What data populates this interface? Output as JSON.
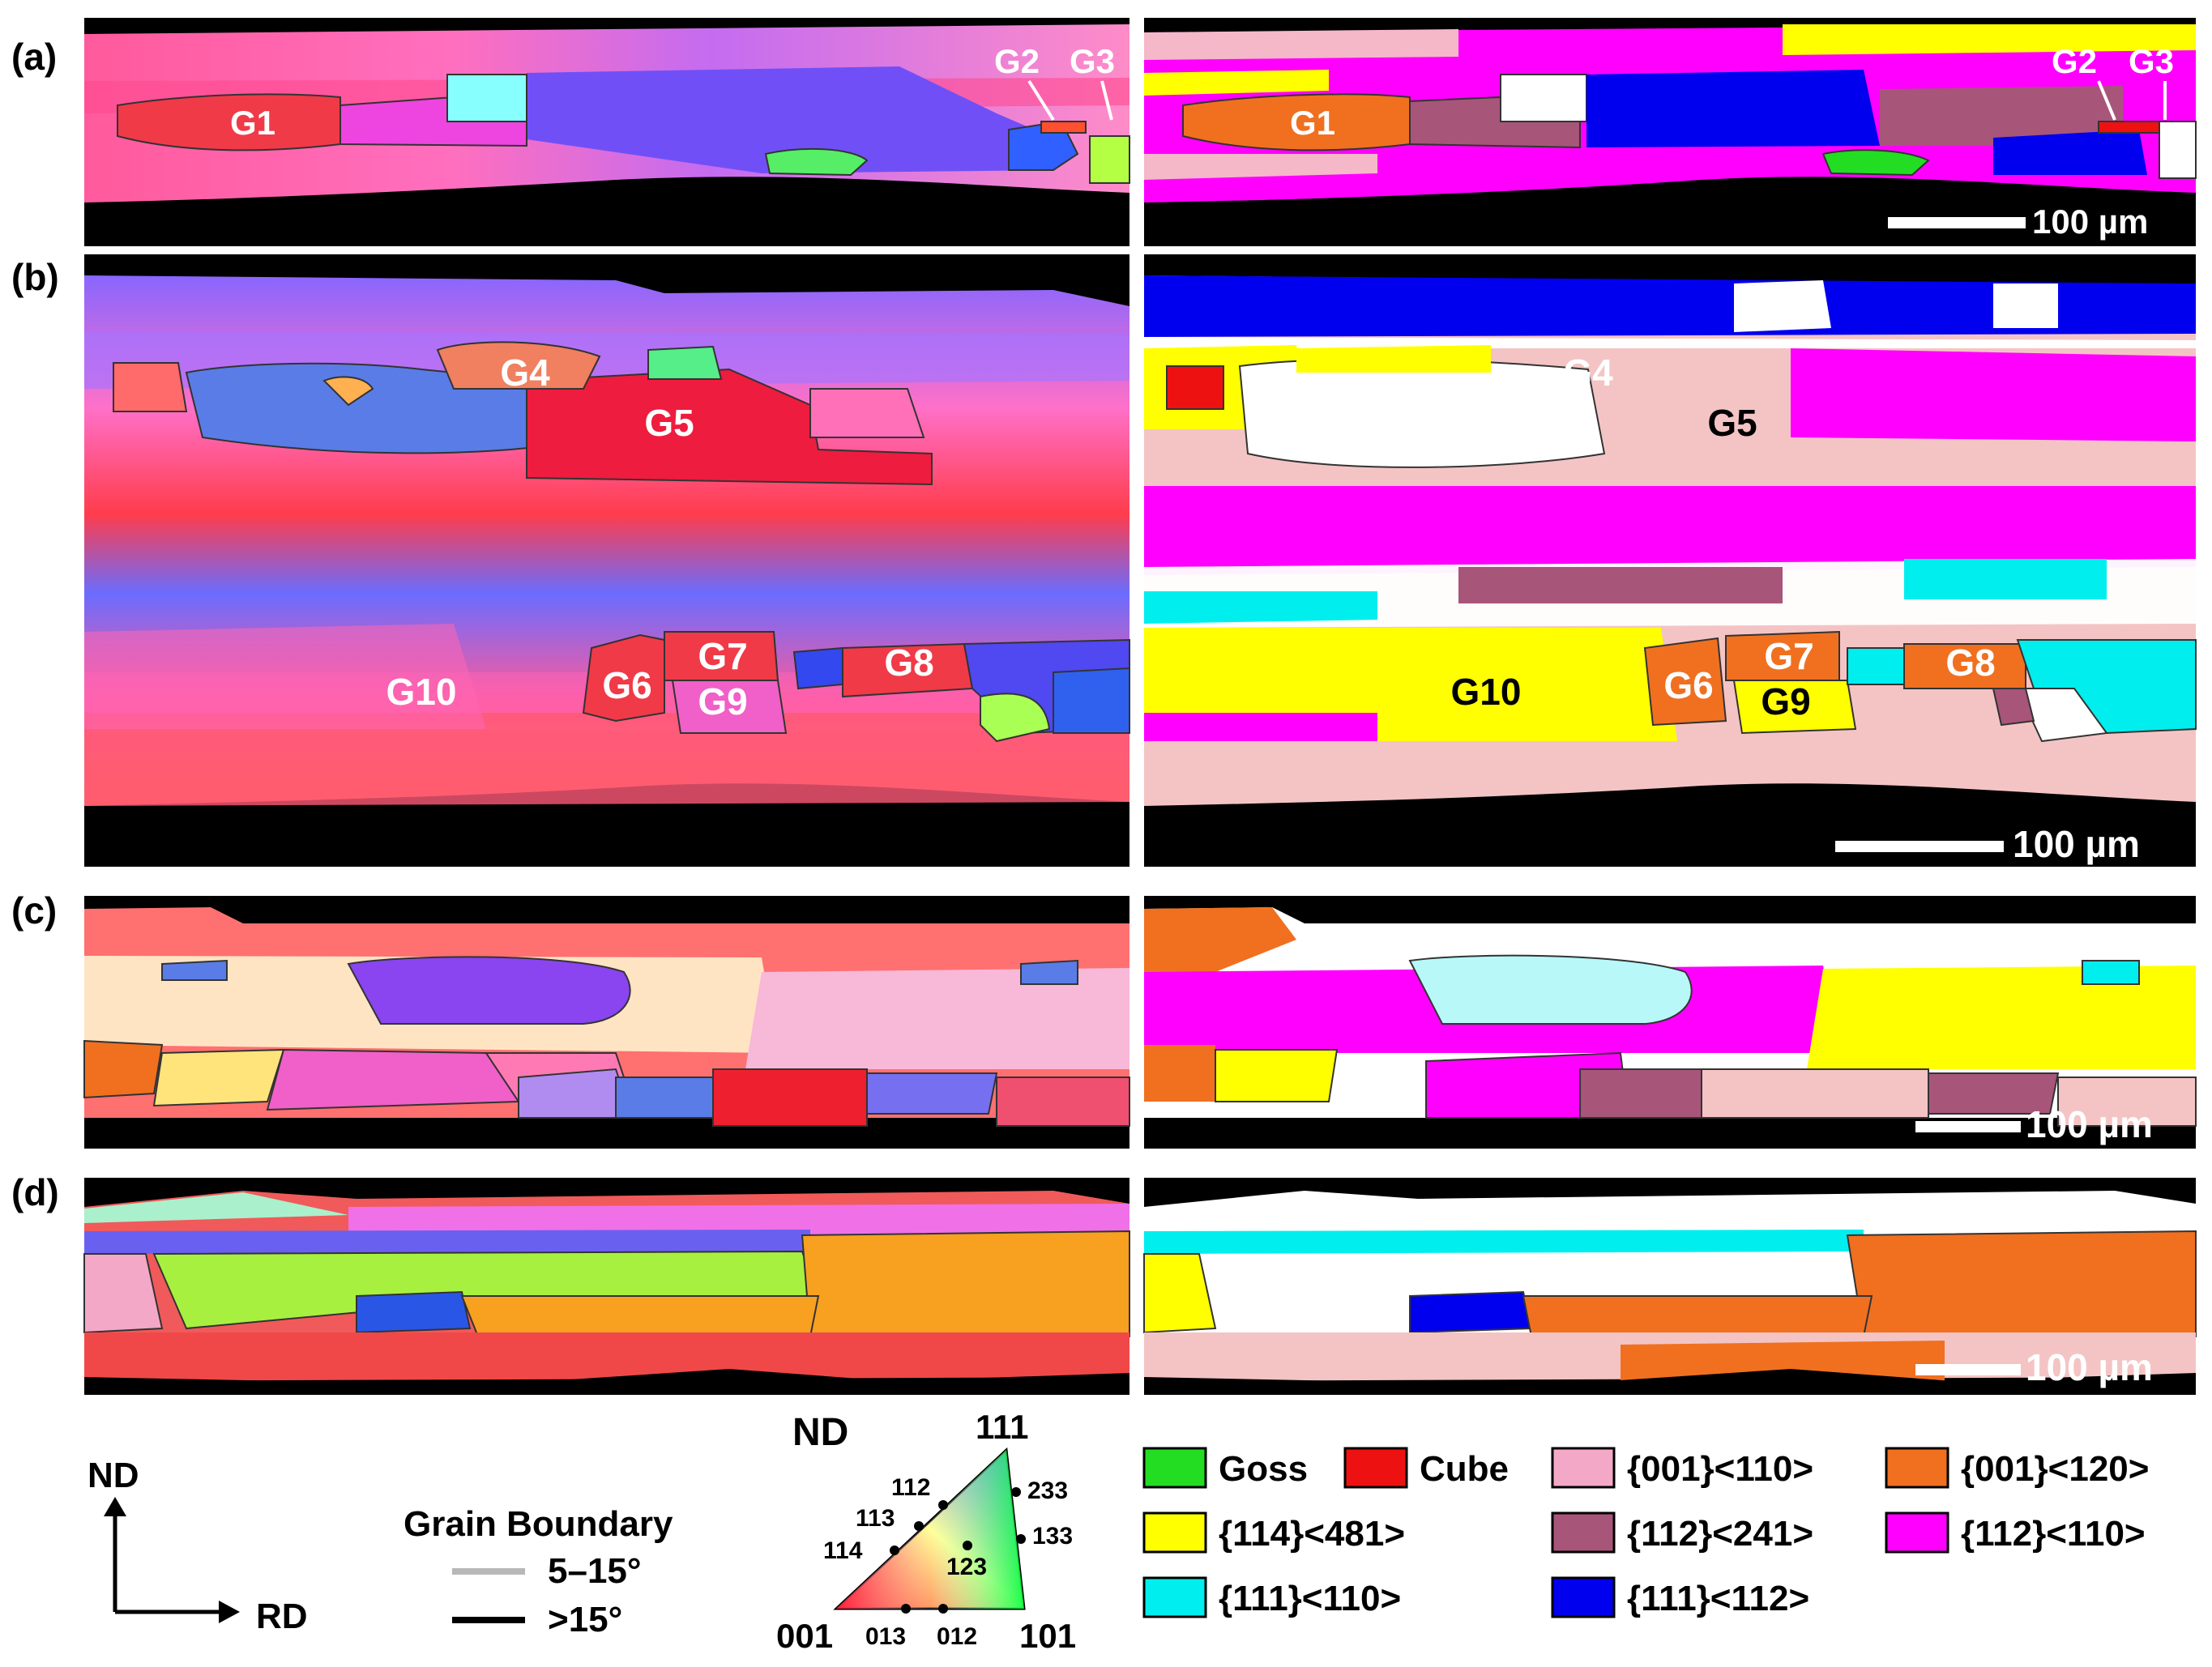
{
  "panels": {
    "a": {
      "label": "(a)",
      "grains_left": [
        {
          "id": "g1",
          "text": "G1"
        },
        {
          "id": "g2",
          "text": "G2"
        },
        {
          "id": "g3",
          "text": "G3"
        }
      ],
      "grains_right": [
        {
          "id": "g1",
          "text": "G1"
        },
        {
          "id": "g2",
          "text": "G2"
        },
        {
          "id": "g3",
          "text": "G3"
        }
      ],
      "scale_bar": "100 µm"
    },
    "b": {
      "label": "(b)",
      "grains_left": [
        {
          "id": "g4",
          "text": "G4"
        },
        {
          "id": "g5",
          "text": "G5"
        },
        {
          "id": "g7",
          "text": "G7"
        },
        {
          "id": "g8",
          "text": "G8"
        },
        {
          "id": "g10",
          "text": "G10"
        },
        {
          "id": "g6",
          "text": "G6"
        },
        {
          "id": "g9",
          "text": "G9"
        }
      ],
      "grains_right": [
        {
          "id": "g4",
          "text": "G4"
        },
        {
          "id": "g5",
          "text": "G5"
        },
        {
          "id": "g7",
          "text": "G7"
        },
        {
          "id": "g8",
          "text": "G8"
        },
        {
          "id": "g10",
          "text": "G10"
        },
        {
          "id": "g6",
          "text": "G6"
        },
        {
          "id": "g9",
          "text": "G9"
        }
      ],
      "scale_bar": "100 µm"
    },
    "c": {
      "label": "(c)",
      "scale_bar": "100 µm"
    },
    "d": {
      "label": "(d)",
      "scale_bar": "100 µm"
    }
  },
  "axes": {
    "vertical": "ND",
    "horizontal": "RD"
  },
  "grain_boundary": {
    "title": "Grain Boundary",
    "low": {
      "label": "5–15°",
      "color": "#c8c8c8"
    },
    "high": {
      "label": ">15°",
      "color": "#000000"
    }
  },
  "ipf": {
    "title": "ND",
    "corners": [
      "001",
      "101",
      "111"
    ],
    "points": [
      "112",
      "113",
      "114",
      "233",
      "133",
      "123",
      "013",
      "012"
    ]
  },
  "texture_legend": [
    {
      "label": "Goss",
      "color": "#22dd22"
    },
    {
      "label": "Cube",
      "color": "#ee1111"
    },
    {
      "label": "{001}<110>",
      "color": "#f4a8c8"
    },
    {
      "label": "{001}<120>",
      "color": "#f07020"
    },
    {
      "label": "{114}<481>",
      "color": "#ffff00"
    },
    {
      "label": "{112}<241>",
      "color": "#a8557a"
    },
    {
      "label": "{112}<110>",
      "color": "#ff00ff"
    },
    {
      "label": "{111}<110>",
      "color": "#00eeee"
    },
    {
      "label": "{111}<112>",
      "color": "#0000ee"
    }
  ]
}
